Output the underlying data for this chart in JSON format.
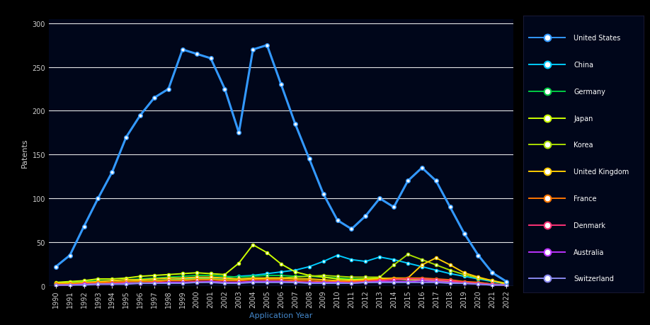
{
  "title": "",
  "xlabel": "Application Year",
  "ylabel": "Patents",
  "background_color": "#000000",
  "plot_bg_color": "#00061a",
  "grid_color": "#ffffff",
  "years": [
    1990,
    1991,
    1992,
    1993,
    1994,
    1995,
    1996,
    1997,
    1998,
    1999,
    2000,
    2001,
    2002,
    2003,
    2004,
    2005,
    2006,
    2007,
    2008,
    2009,
    2010,
    2011,
    2012,
    2013,
    2014,
    2015,
    2016,
    2017,
    2018,
    2019,
    2020,
    2021,
    2022
  ],
  "series": [
    {
      "label": "United States",
      "color": "#3399ff",
      "linewidth": 2.2,
      "markersize": 4,
      "marker": "o",
      "zorder": 10,
      "values": [
        22,
        35,
        68,
        100,
        130,
        170,
        195,
        215,
        225,
        270,
        265,
        260,
        225,
        175,
        270,
        275,
        230,
        185,
        145,
        105,
        75,
        65,
        80,
        100,
        90,
        120,
        135,
        120,
        90,
        60,
        35,
        15,
        5
      ]
    },
    {
      "label": "China",
      "color": "#00ccff",
      "linewidth": 1.4,
      "markersize": 3,
      "marker": "o",
      "zorder": 5,
      "values": [
        2,
        2,
        3,
        4,
        4,
        5,
        5,
        6,
        7,
        8,
        9,
        9,
        9,
        11,
        12,
        14,
        16,
        18,
        22,
        28,
        35,
        30,
        28,
        33,
        30,
        26,
        22,
        18,
        14,
        11,
        8,
        5,
        2
      ]
    },
    {
      "label": "Germany",
      "color": "#00cc44",
      "linewidth": 1.4,
      "markersize": 3,
      "marker": "o",
      "zorder": 5,
      "values": [
        3,
        4,
        5,
        6,
        6,
        7,
        8,
        9,
        10,
        11,
        12,
        12,
        11,
        10,
        11,
        12,
        12,
        11,
        11,
        10,
        9,
        8,
        8,
        9,
        8,
        7,
        7,
        6,
        5,
        4,
        4,
        2,
        1
      ]
    },
    {
      "label": "Japan",
      "color": "#ccff00",
      "linewidth": 1.4,
      "markersize": 3,
      "marker": "o",
      "zorder": 5,
      "values": [
        4,
        5,
        6,
        8,
        8,
        9,
        11,
        12,
        13,
        14,
        15,
        14,
        13,
        26,
        47,
        38,
        25,
        16,
        12,
        10,
        8,
        7,
        8,
        9,
        8,
        7,
        7,
        6,
        5,
        4,
        3,
        2,
        1
      ]
    },
    {
      "label": "Korea",
      "color": "#aadd00",
      "linewidth": 1.4,
      "markersize": 3,
      "marker": "o",
      "zorder": 5,
      "values": [
        2,
        3,
        3,
        4,
        4,
        5,
        6,
        6,
        7,
        7,
        8,
        8,
        7,
        7,
        8,
        9,
        9,
        10,
        11,
        12,
        11,
        10,
        10,
        10,
        24,
        36,
        30,
        24,
        18,
        13,
        9,
        6,
        3
      ]
    },
    {
      "label": "United Kingdom",
      "color": "#ffcc00",
      "linewidth": 1.4,
      "markersize": 3,
      "marker": "o",
      "zorder": 5,
      "values": [
        3,
        3,
        4,
        5,
        6,
        7,
        7,
        8,
        9,
        9,
        10,
        10,
        9,
        8,
        9,
        9,
        9,
        8,
        8,
        7,
        6,
        6,
        7,
        8,
        9,
        9,
        24,
        32,
        24,
        15,
        10,
        6,
        2
      ]
    },
    {
      "label": "France",
      "color": "#ff7700",
      "linewidth": 1.4,
      "markersize": 3,
      "marker": "o",
      "zorder": 5,
      "values": [
        2,
        2,
        3,
        4,
        4,
        5,
        5,
        5,
        6,
        6,
        7,
        7,
        6,
        6,
        7,
        7,
        7,
        6,
        6,
        5,
        5,
        5,
        6,
        7,
        8,
        9,
        9,
        8,
        7,
        5,
        4,
        2,
        1
      ]
    },
    {
      "label": "Denmark",
      "color": "#ff3377",
      "linewidth": 1.4,
      "markersize": 3,
      "marker": "o",
      "zorder": 5,
      "values": [
        1,
        1,
        2,
        2,
        3,
        3,
        3,
        4,
        4,
        4,
        5,
        5,
        4,
        4,
        5,
        5,
        5,
        5,
        4,
        4,
        4,
        4,
        5,
        6,
        7,
        8,
        8,
        7,
        6,
        4,
        3,
        2,
        1
      ]
    },
    {
      "label": "Australia",
      "color": "#bb33ff",
      "linewidth": 1.4,
      "markersize": 3,
      "marker": "o",
      "zorder": 5,
      "values": [
        1,
        1,
        2,
        2,
        2,
        3,
        3,
        3,
        4,
        4,
        4,
        5,
        4,
        4,
        5,
        5,
        5,
        4,
        4,
        4,
        4,
        3,
        4,
        5,
        5,
        5,
        6,
        5,
        4,
        3,
        2,
        1,
        1
      ]
    },
    {
      "label": "Switzerland",
      "color": "#8888ee",
      "linewidth": 1.4,
      "markersize": 3,
      "marker": "o",
      "zorder": 5,
      "values": [
        1,
        1,
        1,
        2,
        2,
        2,
        3,
        3,
        3,
        3,
        4,
        4,
        3,
        3,
        4,
        4,
        4,
        4,
        3,
        3,
        3,
        3,
        4,
        4,
        4,
        4,
        4,
        4,
        3,
        3,
        2,
        1,
        1
      ]
    }
  ],
  "ylim": [
    0,
    305
  ],
  "yticks": [
    0,
    50,
    100,
    150,
    200,
    250,
    300
  ],
  "ytick_labels": [
    "0",
    "50",
    "100",
    "150",
    "200",
    "250",
    "300"
  ],
  "title_color": "#ffffff",
  "axis_color": "#ffffff",
  "tick_color": "#cccccc",
  "title_fontsize": 9,
  "axis_label_fontsize": 8,
  "tick_fontsize": 7,
  "legend_fontsize": 7
}
